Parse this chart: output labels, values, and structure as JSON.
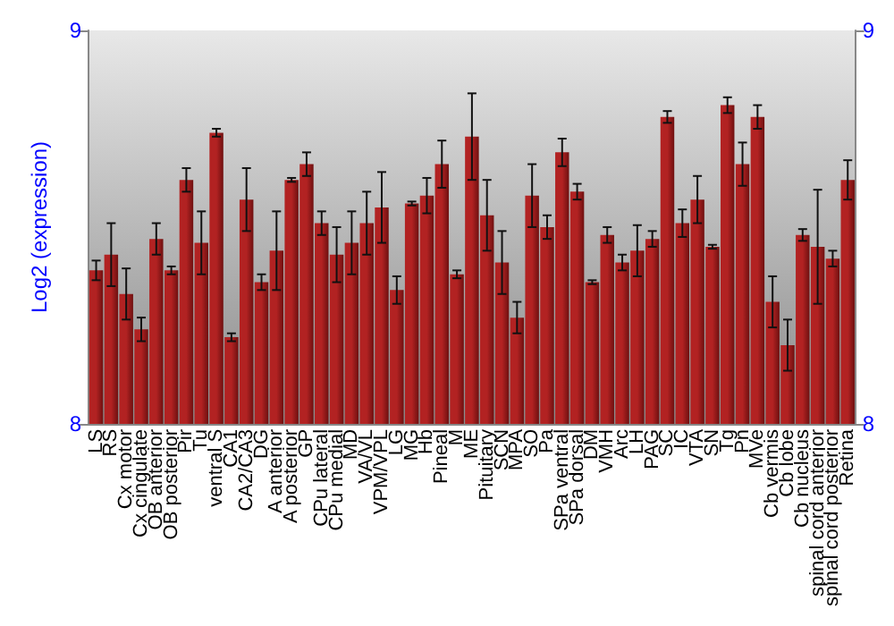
{
  "chart_data": {
    "type": "bar",
    "ylabel": "Log2 (expression)",
    "categories": [
      "LS",
      "RS",
      "Cx motor",
      "Cx cingulate",
      "OB anterior",
      "OB posterior",
      "Pir",
      "Tu",
      "ventral S",
      "CA1",
      "CA2/CA3",
      "DG",
      "A anterior",
      "A posterior",
      "GP",
      "CPu lateral",
      "CPu medial",
      "MD",
      "VA/VL",
      "VPM/VPL",
      "LG",
      "MG",
      "Hb",
      "Pineal",
      "M",
      "ME",
      "Pituitary",
      "SCN",
      "MPA",
      "SO",
      "Pa",
      "SPa ventral",
      "SPa dorsal",
      "DM",
      "VMH",
      "Arc",
      "LH",
      "PAG",
      "SC",
      "IC",
      "VTA",
      "SN",
      "Tg",
      "Pn",
      "MVe",
      "Cb vermis",
      "Cb lobe",
      "Cb nucleus",
      "spinal cord anterior",
      "spinal cord posterior",
      "Retina"
    ],
    "values": [
      8.39,
      8.43,
      8.33,
      8.24,
      8.47,
      8.39,
      8.62,
      8.46,
      8.74,
      8.22,
      8.57,
      8.36,
      8.44,
      8.62,
      8.66,
      8.51,
      8.43,
      8.46,
      8.51,
      8.55,
      8.34,
      8.56,
      8.58,
      8.66,
      8.38,
      8.73,
      8.53,
      8.41,
      8.27,
      8.58,
      8.5,
      8.69,
      8.59,
      8.36,
      8.48,
      8.41,
      8.44,
      8.47,
      8.78,
      8.51,
      8.57,
      8.45,
      8.81,
      8.66,
      8.78,
      8.31,
      8.2,
      8.48,
      8.45,
      8.42,
      8.62
    ],
    "errors": [
      0.025,
      0.08,
      0.065,
      0.03,
      0.04,
      0.01,
      0.03,
      0.08,
      0.01,
      0.01,
      0.08,
      0.02,
      0.1,
      0.005,
      0.03,
      0.03,
      0.07,
      0.08,
      0.08,
      0.09,
      0.035,
      0.005,
      0.045,
      0.06,
      0.01,
      0.11,
      0.09,
      0.08,
      0.04,
      0.08,
      0.03,
      0.035,
      0.02,
      0.005,
      0.02,
      0.02,
      0.065,
      0.02,
      0.015,
      0.035,
      0.06,
      0.005,
      0.02,
      0.055,
      0.03,
      0.065,
      0.065,
      0.015,
      0.145,
      0.02,
      0.05
    ],
    "color": "#b22222",
    "ylim": [
      8,
      9
    ],
    "yticks": [
      8,
      9
    ],
    "y2lim": [
      8,
      9
    ],
    "y2ticks": [
      8,
      9
    ],
    "grid": false
  }
}
